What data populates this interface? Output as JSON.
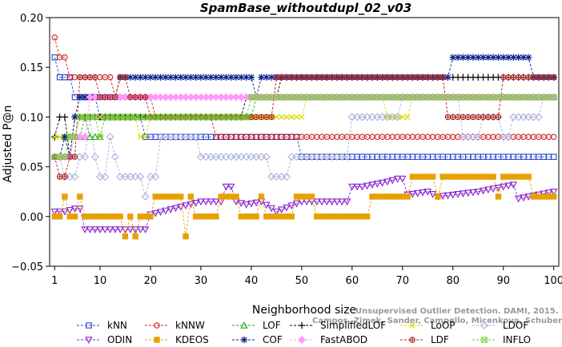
{
  "chart_data": {
    "type": "line",
    "title": "SpamBase_withoutdupl_02_v03",
    "xlabel": "Neighborhood size",
    "ylabel": "Adjusted P@n",
    "xlim": [
      0,
      101
    ],
    "ylim": [
      -0.05,
      0.2
    ],
    "xticks": [
      1,
      10,
      20,
      30,
      40,
      50,
      60,
      70,
      80,
      90,
      100
    ],
    "yticks": [
      -0.05,
      0.0,
      0.05,
      0.1,
      0.15,
      0.2
    ],
    "ytick_labels": [
      "−0.05",
      "0.00",
      "0.05",
      "0.10",
      "0.15",
      "0.20"
    ],
    "grid": false,
    "legend_position": "bottom",
    "series": [
      {
        "name": "kNN",
        "color": "#2244cc",
        "marker": "square",
        "points": [
          [
            1,
            0.16
          ],
          [
            2,
            0.14
          ],
          [
            4,
            0.14
          ],
          [
            5,
            0.12
          ],
          [
            9,
            0.12
          ],
          [
            10,
            0.1
          ],
          [
            18,
            0.1
          ],
          [
            19,
            0.08
          ],
          [
            49,
            0.08
          ],
          [
            50,
            0.06
          ],
          [
            100,
            0.06
          ]
        ]
      },
      {
        "name": "kNNW",
        "color": "#cc2222",
        "marker": "circle",
        "points": [
          [
            1,
            0.18
          ],
          [
            2,
            0.16
          ],
          [
            3,
            0.16
          ],
          [
            4,
            0.14
          ],
          [
            12,
            0.14
          ],
          [
            13,
            0.12
          ],
          [
            20,
            0.12
          ],
          [
            21,
            0.1
          ],
          [
            32,
            0.1
          ],
          [
            33,
            0.08
          ],
          [
            100,
            0.08
          ]
        ]
      },
      {
        "name": "LOF",
        "color": "#22aa22",
        "marker": "triangle-up",
        "points": [
          [
            1,
            0.06
          ],
          [
            2,
            0.06
          ],
          [
            3,
            0.08
          ],
          [
            6,
            0.08
          ],
          [
            7,
            0.1
          ],
          [
            8,
            0.08
          ],
          [
            10,
            0.08
          ],
          [
            11,
            0.1
          ],
          [
            40,
            0.1
          ],
          [
            41,
            0.12
          ],
          [
            100,
            0.12
          ]
        ]
      },
      {
        "name": "SimplifiedLOF",
        "color": "#000000",
        "marker": "plus",
        "points": [
          [
            1,
            0.08
          ],
          [
            2,
            0.1
          ],
          [
            4,
            0.06
          ],
          [
            5,
            0.1
          ],
          [
            38,
            0.1
          ],
          [
            39,
            0.12
          ],
          [
            45,
            0.12
          ],
          [
            46,
            0.14
          ],
          [
            100,
            0.14
          ]
        ]
      },
      {
        "name": "LoOP",
        "color": "#dddd00",
        "marker": "x",
        "points": [
          [
            1,
            0.08
          ],
          [
            5,
            0.08
          ],
          [
            6,
            0.1
          ],
          [
            17,
            0.1
          ],
          [
            18,
            0.08
          ],
          [
            20,
            0.1
          ],
          [
            44,
            0.1
          ],
          [
            45,
            0.1
          ],
          [
            50,
            0.1
          ],
          [
            51,
            0.12
          ],
          [
            66,
            0.12
          ],
          [
            67,
            0.1
          ],
          [
            71,
            0.1
          ],
          [
            72,
            0.12
          ],
          [
            100,
            0.12
          ]
        ]
      },
      {
        "name": "LDOF",
        "color": "#aab0dd",
        "marker": "diamond",
        "points": [
          [
            1,
            0.06
          ],
          [
            3,
            0.04
          ],
          [
            6,
            0.06
          ],
          [
            8,
            0.1
          ],
          [
            9,
            0.06
          ],
          [
            10,
            0.04
          ],
          [
            12,
            0.08
          ],
          [
            13,
            0.06
          ],
          [
            14,
            0.04
          ],
          [
            18,
            0.04
          ],
          [
            19,
            0.02
          ],
          [
            20,
            0.04
          ],
          [
            22,
            0.08
          ],
          [
            28,
            0.08
          ],
          [
            30,
            0.06
          ],
          [
            40,
            0.06
          ],
          [
            44,
            0.04
          ],
          [
            46,
            0.04
          ],
          [
            48,
            0.06
          ],
          [
            50,
            0.06
          ],
          [
            60,
            0.1
          ],
          [
            70,
            0.12
          ],
          [
            80,
            0.12
          ],
          [
            82,
            0.08
          ],
          [
            86,
            0.1
          ],
          [
            88,
            0.1
          ],
          [
            90,
            0.08
          ],
          [
            92,
            0.1
          ],
          [
            96,
            0.1
          ],
          [
            98,
            0.12
          ],
          [
            100,
            0.12
          ]
        ]
      },
      {
        "name": "ODIN",
        "color": "#8822cc",
        "marker": "triangle-down",
        "points": [
          [
            1,
            0.005
          ],
          [
            3,
            0.005
          ],
          [
            5,
            0.008
          ],
          [
            7,
            -0.013
          ],
          [
            20,
            0.002
          ],
          [
            30,
            0.015
          ],
          [
            35,
            0.03
          ],
          [
            37,
            0.015
          ],
          [
            39,
            0.012
          ],
          [
            42,
            0.015
          ],
          [
            45,
            0.005
          ],
          [
            50,
            0.015
          ],
          [
            60,
            0.03
          ],
          [
            62,
            0.03
          ],
          [
            67,
            0.035
          ],
          [
            69,
            0.038
          ],
          [
            71,
            0.022
          ],
          [
            75,
            0.025
          ],
          [
            77,
            0.02
          ],
          [
            85,
            0.025
          ],
          [
            92,
            0.032
          ],
          [
            93,
            0.018
          ],
          [
            100,
            0.025
          ]
        ]
      },
      {
        "name": "KDEOS",
        "color": "#e8a000",
        "marker": "filled-square",
        "points": [
          [
            1,
            0.0
          ],
          [
            3,
            0.02
          ],
          [
            4,
            0.0
          ],
          [
            6,
            0.02
          ],
          [
            7,
            0.0
          ],
          [
            14,
            0.0
          ],
          [
            15,
            -0.02
          ],
          [
            16,
            0.0
          ],
          [
            17,
            -0.02
          ],
          [
            18,
            0.0
          ],
          [
            20,
            0.0
          ],
          [
            21,
            0.02
          ],
          [
            26,
            0.02
          ],
          [
            27,
            -0.02
          ],
          [
            28,
            0.02
          ],
          [
            29,
            0.0
          ],
          [
            33,
            0.0
          ],
          [
            34,
            0.02
          ],
          [
            37,
            0.02
          ],
          [
            38,
            0.0
          ],
          [
            41,
            0.0
          ],
          [
            42,
            0.02
          ],
          [
            43,
            0.0
          ],
          [
            48,
            0.0
          ],
          [
            49,
            0.02
          ],
          [
            53,
            0.0
          ],
          [
            63,
            0.0
          ],
          [
            64,
            0.02
          ],
          [
            71,
            0.02
          ],
          [
            72,
            0.04
          ],
          [
            77,
            0.02
          ],
          [
            78,
            0.04
          ],
          [
            88,
            0.04
          ],
          [
            89,
            0.02
          ],
          [
            90,
            0.04
          ],
          [
            95,
            0.04
          ],
          [
            96,
            0.02
          ],
          [
            100,
            0.02
          ]
        ]
      },
      {
        "name": "COF",
        "color": "#112288",
        "marker": "asterisk",
        "points": [
          [
            1,
            0.06
          ],
          [
            2,
            0.06
          ],
          [
            3,
            0.08
          ],
          [
            4,
            0.06
          ],
          [
            5,
            0.1
          ],
          [
            6,
            0.12
          ],
          [
            13,
            0.12
          ],
          [
            14,
            0.14
          ],
          [
            40,
            0.14
          ],
          [
            41,
            0.12
          ],
          [
            42,
            0.14
          ],
          [
            79,
            0.14
          ],
          [
            80,
            0.16
          ],
          [
            95,
            0.16
          ],
          [
            96,
            0.14
          ],
          [
            100,
            0.14
          ]
        ]
      },
      {
        "name": "FastABOD",
        "color": "#ff99ff",
        "marker": "filled-diamond",
        "points": [
          [
            1,
            0.06
          ],
          [
            4,
            0.06
          ],
          [
            5,
            0.08
          ],
          [
            8,
            0.12
          ],
          [
            100,
            0.12
          ]
        ]
      },
      {
        "name": "LDF",
        "color": "#aa2222",
        "marker": "circle-plus",
        "points": [
          [
            1,
            0.06
          ],
          [
            2,
            0.04
          ],
          [
            3,
            0.04
          ],
          [
            4,
            0.06
          ],
          [
            6,
            0.14
          ],
          [
            10,
            0.12
          ],
          [
            14,
            0.14
          ],
          [
            16,
            0.12
          ],
          [
            20,
            0.1
          ],
          [
            35,
            0.1
          ],
          [
            45,
            0.14
          ],
          [
            78,
            0.14
          ],
          [
            79,
            0.1
          ],
          [
            89,
            0.1
          ],
          [
            90,
            0.14
          ],
          [
            100,
            0.14
          ]
        ]
      },
      {
        "name": "INFLO",
        "color": "#77cc33",
        "marker": "asterisk-box",
        "points": [
          [
            1,
            0.06
          ],
          [
            3,
            0.06
          ],
          [
            4,
            0.08
          ],
          [
            6,
            0.1
          ],
          [
            10,
            0.08
          ],
          [
            11,
            0.1
          ],
          [
            38,
            0.1
          ],
          [
            40,
            0.12
          ],
          [
            100,
            0.12
          ]
        ]
      }
    ]
  },
  "watermark": {
    "line1": "Unsupervised Outlier Detection. DAMI, 2015.",
    "line2": "Campos, Zimek, Sander, Campello, Micenkova, Schubert, Assent, Houle"
  }
}
